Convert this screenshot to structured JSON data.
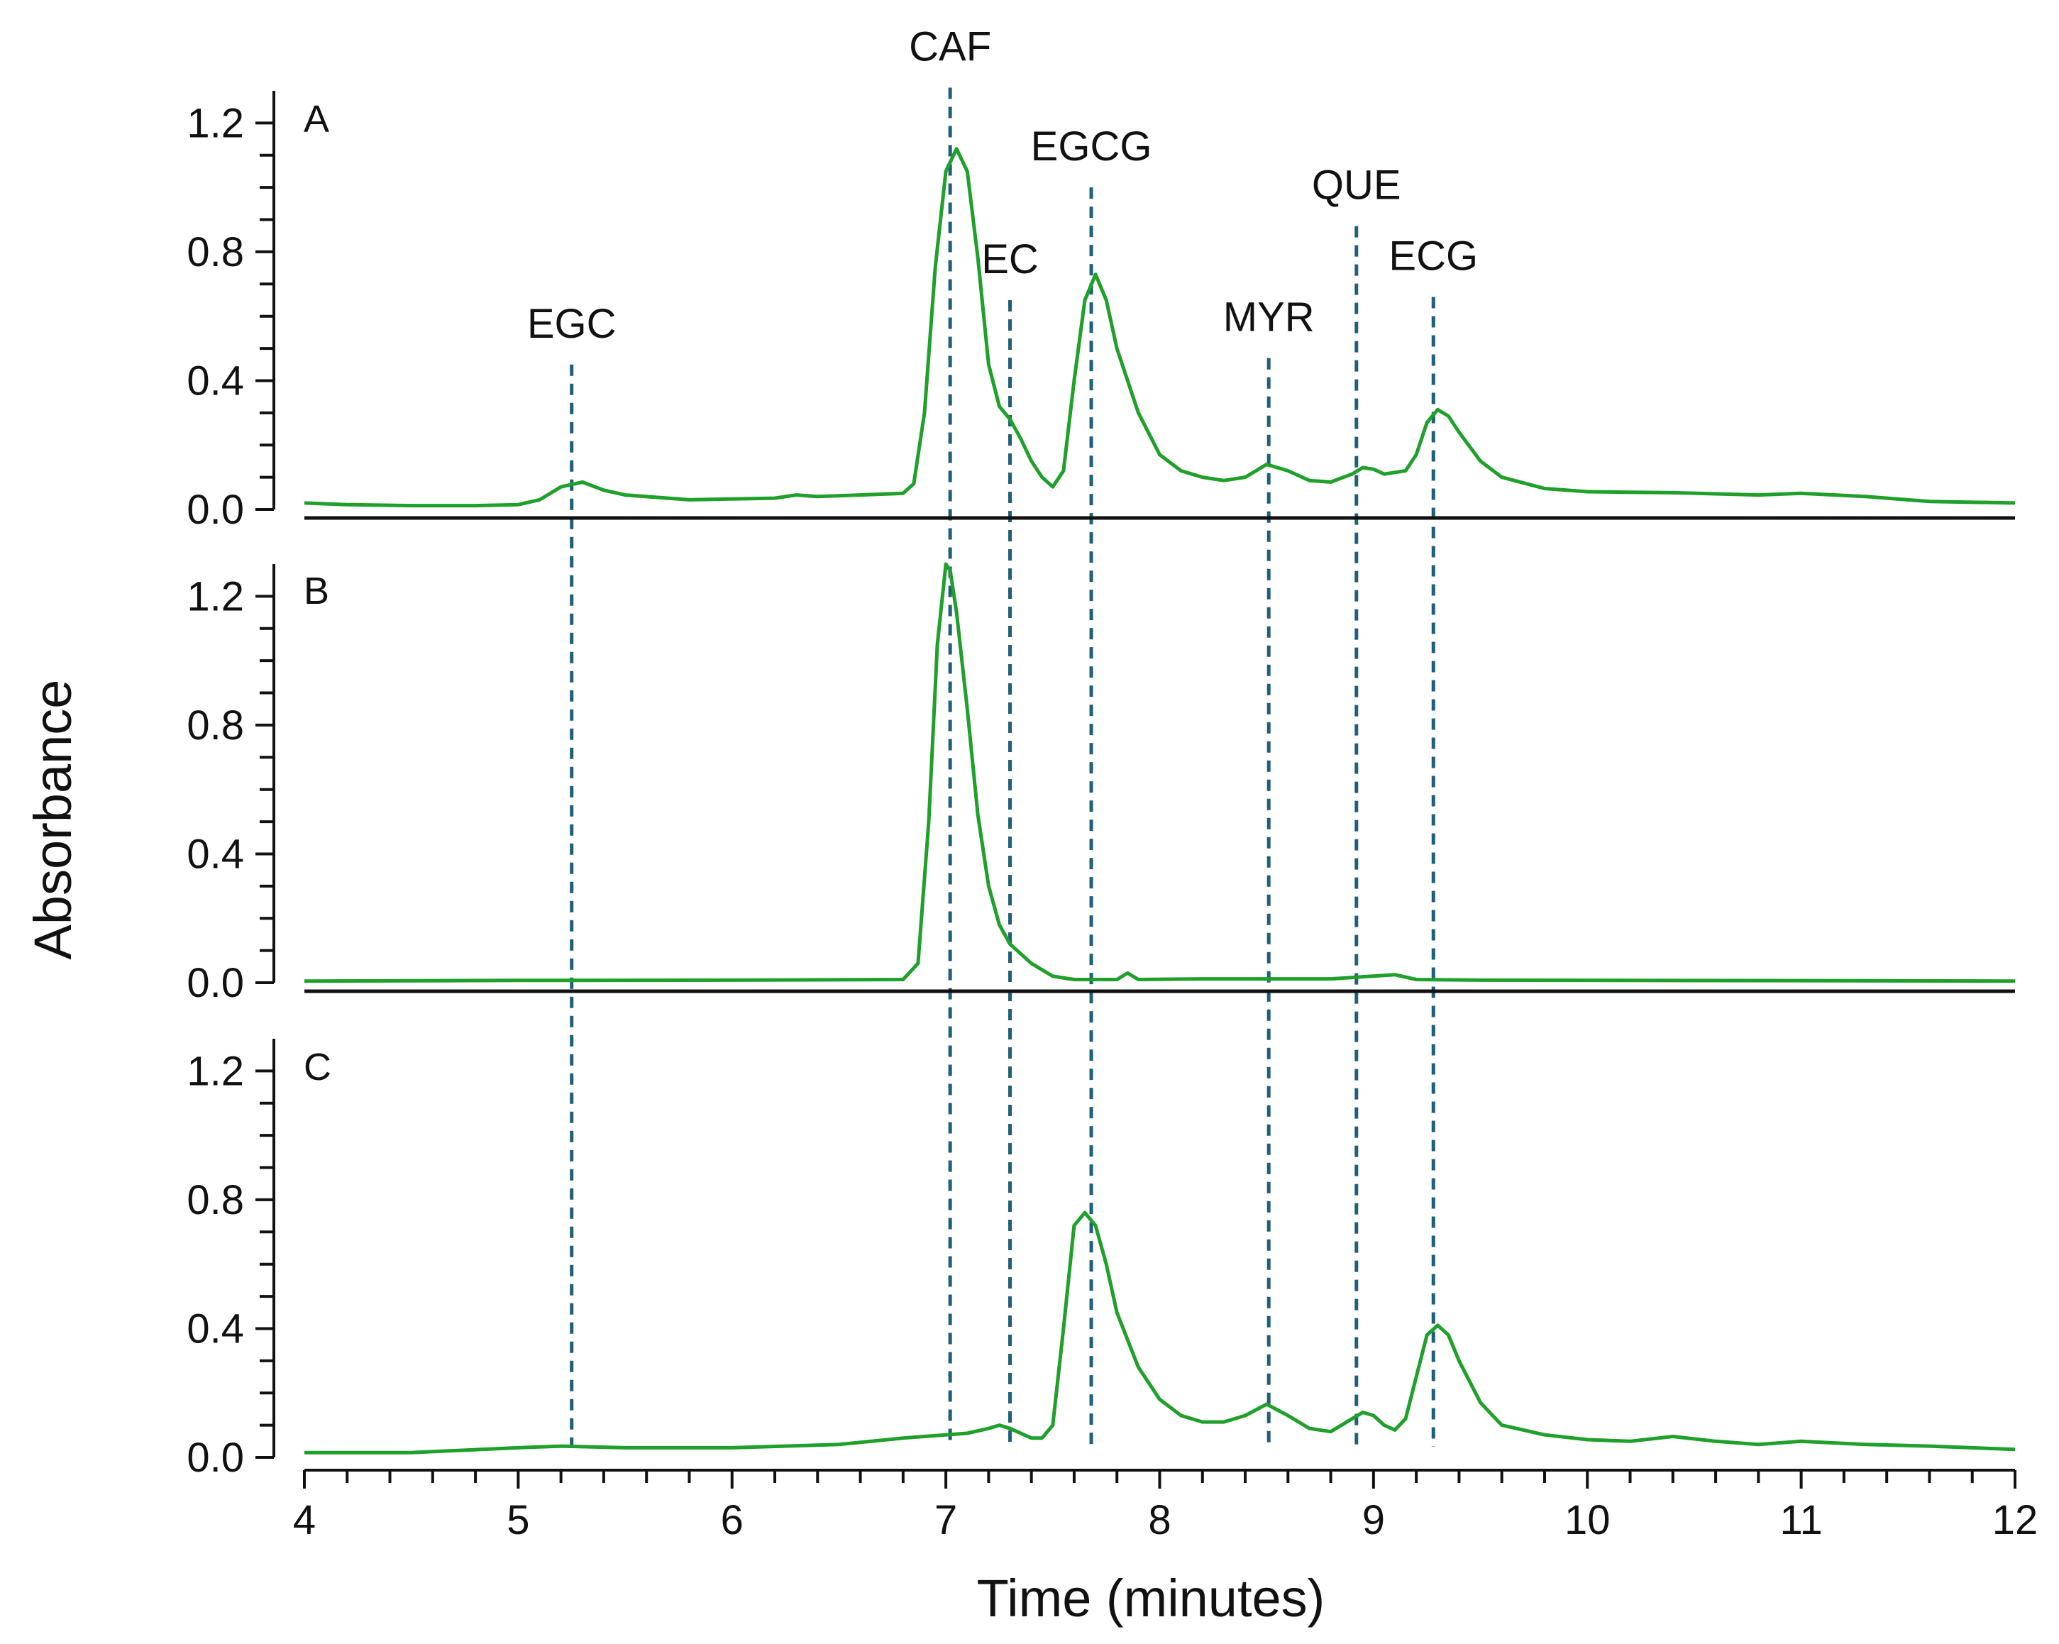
{
  "chart_data": {
    "type": "line",
    "title": "",
    "xlabel": "Time (minutes)",
    "ylabel": "Absorbance",
    "xlim": [
      4,
      12
    ],
    "ylim": [
      0,
      1.3
    ],
    "x_ticks": [
      "4",
      "5",
      "6",
      "7",
      "8",
      "9",
      "10",
      "11",
      "12"
    ],
    "y_ticks": [
      "0.0",
      "0.4",
      "0.8",
      "1.2"
    ],
    "grid": false,
    "colors": {
      "series": "#1fa02a",
      "reference": "#1f5f7a",
      "axis": "#111111"
    },
    "reference_lines": [
      {
        "label": "EGC",
        "x": 5.25,
        "y_top_a": 0.45
      },
      {
        "label": "CAF",
        "x": 7.02,
        "y_top_a": 1.31
      },
      {
        "label": "EC",
        "x": 7.3,
        "y_top_a": 0.65
      },
      {
        "label": "EGCG",
        "x": 7.68,
        "y_top_a": 1.0
      },
      {
        "label": "MYR",
        "x": 8.51,
        "y_top_a": 0.47
      },
      {
        "label": "QUE",
        "x": 8.92,
        "y_top_a": 0.88
      },
      {
        "label": "ECG",
        "x": 9.28,
        "y_top_a": 0.66
      }
    ],
    "series": [
      {
        "name": "A",
        "x": [
          4.0,
          4.2,
          4.5,
          4.8,
          5.0,
          5.1,
          5.2,
          5.3,
          5.4,
          5.5,
          5.8,
          6.2,
          6.3,
          6.4,
          6.6,
          6.8,
          6.85,
          6.9,
          6.95,
          7.0,
          7.05,
          7.1,
          7.15,
          7.2,
          7.25,
          7.3,
          7.35,
          7.4,
          7.45,
          7.5,
          7.55,
          7.6,
          7.65,
          7.7,
          7.75,
          7.8,
          7.9,
          8.0,
          8.1,
          8.2,
          8.3,
          8.4,
          8.5,
          8.6,
          8.7,
          8.8,
          8.9,
          8.95,
          9.0,
          9.05,
          9.1,
          9.15,
          9.2,
          9.25,
          9.3,
          9.35,
          9.4,
          9.5,
          9.6,
          9.8,
          10.0,
          10.4,
          10.8,
          11.0,
          11.3,
          11.6,
          12.0
        ],
        "y": [
          0.02,
          0.015,
          0.012,
          0.012,
          0.015,
          0.03,
          0.07,
          0.085,
          0.06,
          0.045,
          0.03,
          0.035,
          0.045,
          0.04,
          0.045,
          0.05,
          0.08,
          0.3,
          0.75,
          1.05,
          1.12,
          1.05,
          0.78,
          0.45,
          0.32,
          0.28,
          0.22,
          0.15,
          0.1,
          0.07,
          0.12,
          0.4,
          0.65,
          0.73,
          0.65,
          0.5,
          0.3,
          0.17,
          0.12,
          0.1,
          0.09,
          0.1,
          0.14,
          0.12,
          0.09,
          0.085,
          0.11,
          0.13,
          0.125,
          0.11,
          0.115,
          0.12,
          0.17,
          0.27,
          0.31,
          0.29,
          0.24,
          0.15,
          0.1,
          0.065,
          0.055,
          0.052,
          0.045,
          0.05,
          0.04,
          0.025,
          0.02
        ]
      },
      {
        "name": "B",
        "x": [
          4.0,
          5.0,
          6.0,
          6.8,
          6.87,
          6.92,
          6.96,
          7.0,
          7.02,
          7.05,
          7.1,
          7.15,
          7.2,
          7.25,
          7.3,
          7.4,
          7.5,
          7.6,
          7.8,
          7.85,
          7.9,
          8.2,
          8.8,
          9.1,
          9.2,
          9.5,
          12.0
        ],
        "y": [
          0.005,
          0.007,
          0.008,
          0.01,
          0.06,
          0.5,
          1.05,
          1.3,
          1.28,
          1.15,
          0.85,
          0.52,
          0.3,
          0.18,
          0.12,
          0.06,
          0.02,
          0.01,
          0.01,
          0.03,
          0.01,
          0.012,
          0.012,
          0.025,
          0.01,
          0.008,
          0.005
        ]
      },
      {
        "name": "C",
        "x": [
          4.0,
          4.5,
          5.0,
          5.2,
          5.5,
          6.0,
          6.5,
          6.8,
          7.0,
          7.1,
          7.2,
          7.25,
          7.3,
          7.4,
          7.45,
          7.5,
          7.55,
          7.6,
          7.65,
          7.7,
          7.75,
          7.8,
          7.9,
          8.0,
          8.1,
          8.2,
          8.3,
          8.4,
          8.5,
          8.6,
          8.7,
          8.8,
          8.9,
          8.95,
          9.0,
          9.05,
          9.1,
          9.15,
          9.2,
          9.25,
          9.3,
          9.35,
          9.4,
          9.5,
          9.6,
          9.8,
          10.0,
          10.2,
          10.4,
          10.6,
          10.8,
          11.0,
          11.3,
          11.6,
          12.0
        ],
        "y": [
          0.015,
          0.015,
          0.03,
          0.035,
          0.03,
          0.03,
          0.04,
          0.06,
          0.07,
          0.075,
          0.09,
          0.1,
          0.09,
          0.06,
          0.06,
          0.1,
          0.4,
          0.72,
          0.76,
          0.72,
          0.6,
          0.45,
          0.28,
          0.18,
          0.13,
          0.11,
          0.11,
          0.13,
          0.165,
          0.13,
          0.09,
          0.08,
          0.12,
          0.14,
          0.13,
          0.1,
          0.085,
          0.12,
          0.25,
          0.38,
          0.41,
          0.38,
          0.3,
          0.17,
          0.1,
          0.07,
          0.055,
          0.05,
          0.065,
          0.05,
          0.04,
          0.05,
          0.04,
          0.035,
          0.025
        ]
      }
    ]
  }
}
